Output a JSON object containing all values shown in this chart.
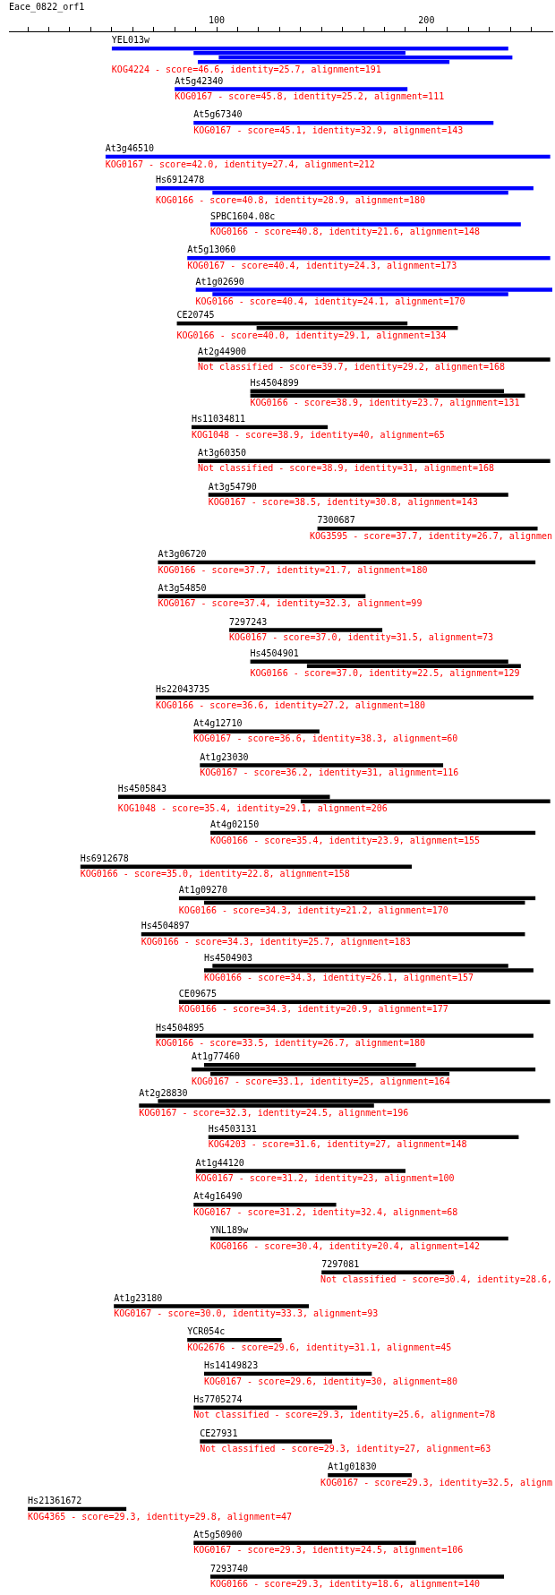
{
  "chart_data": {
    "type": "bar",
    "orientation": "horizontal",
    "xlabel": "Eace_0822_orf1",
    "categories": [
      "YEL013w",
      "At5g42340",
      "At5g67340",
      "At3g46510",
      "Hs6912478",
      "SPBC1604.08c",
      "At5g13060",
      "At1g02690",
      "CE20745",
      "At2g44900",
      "Hs4504899",
      "Hs11034811",
      "At3g60350",
      "At3g54790",
      "7300687",
      "At3g06720",
      "At3g54850",
      "7297243",
      "Hs4504901",
      "Hs22043735",
      "At4g12710",
      "At1g23030",
      "Hs4505843",
      "At4g02150",
      "Hs6912678",
      "At1g09270",
      "Hs4504897",
      "Hs4504903",
      "CE09675",
      "Hs4504895",
      "At1g77460",
      "At2g28830",
      "Hs4503131",
      "At1g44120",
      "At4g16490",
      "YNL189w",
      "7297081",
      "At1g23180",
      "YCR054c",
      "Hs14149823",
      "Hs7705274",
      "CE27931",
      "At1g01830",
      "Hs21361672",
      "At5g50900",
      "7293740"
    ],
    "series": [
      {
        "values": [
          189,
          111,
          143,
          212,
          180,
          148,
          173,
          170,
          110,
          168,
          121,
          65,
          168,
          143,
          105,
          180,
          99,
          73,
          123,
          180,
          60,
          116,
          101,
          155,
          158,
          170,
          183,
          141,
          177,
          180,
          101,
          187,
          148,
          100,
          68,
          142,
          63,
          93,
          45,
          80,
          78,
          63,
          40,
          47,
          106,
          140
        ],
        "base": [
          50,
          80,
          89,
          47,
          71,
          97,
          86,
          90,
          81,
          91,
          116,
          88,
          91,
          96,
          148,
          72,
          72,
          106,
          116,
          71,
          89,
          92,
          53,
          97,
          35,
          82,
          64,
          98,
          82,
          71,
          94,
          72,
          96,
          90,
          89,
          97,
          150,
          51,
          86,
          94,
          89,
          92,
          153,
          10,
          89,
          97
        ],
        "colors": [
          "#0000ff",
          "#0000ff",
          "#0000ff",
          "#0000ff",
          "#0000ff",
          "#0000ff",
          "#0000ff",
          "#0000ff",
          "#000000",
          "#000000",
          "#000000",
          "#000000",
          "#000000",
          "#000000",
          "#000000",
          "#000000",
          "#000000",
          "#000000",
          "#000000",
          "#000000",
          "#000000",
          "#000000",
          "#000000",
          "#000000",
          "#000000",
          "#000000",
          "#000000",
          "#000000",
          "#000000",
          "#000000",
          "#000000",
          "#000000",
          "#000000",
          "#000000",
          "#000000",
          "#000000",
          "#000000",
          "#000000",
          "#000000",
          "#000000",
          "#000000",
          "#000000",
          "#000000",
          "#000000",
          "#000000",
          "#000000"
        ]
      },
      {
        "values": [
          101,
          null,
          null,
          null,
          141,
          null,
          null,
          141,
          96,
          null,
          131,
          null,
          null,
          null,
          null,
          null,
          null,
          null,
          102,
          null,
          null,
          null,
          119,
          null,
          null,
          153,
          null,
          157,
          null,
          null,
          164,
          112,
          null,
          null,
          null,
          null,
          null,
          null,
          null,
          null,
          null,
          null,
          null,
          null,
          null,
          null
        ],
        "base": [
          89,
          null,
          null,
          null,
          98,
          null,
          null,
          98,
          119,
          null,
          116,
          null,
          null,
          null,
          null,
          null,
          null,
          null,
          143,
          null,
          null,
          null,
          140,
          null,
          null,
          94,
          null,
          94,
          null,
          null,
          88,
          63,
          null,
          null,
          null,
          null,
          null,
          null,
          null,
          null,
          null,
          null,
          null,
          null,
          null,
          null
        ],
        "colors": [
          "#0000ff",
          null,
          null,
          null,
          "#0000ff",
          null,
          null,
          "#0000ff",
          "#000000",
          null,
          "#000000",
          null,
          null,
          null,
          null,
          null,
          null,
          null,
          "#000000",
          null,
          null,
          null,
          "#000000",
          null,
          null,
          "#000000",
          null,
          "#000000",
          null,
          null,
          "#000000",
          "#000000",
          null,
          null,
          null,
          null,
          null,
          null,
          null,
          null,
          null,
          null,
          null,
          null,
          null,
          null
        ]
      },
      {
        "values": [
          140,
          null,
          null,
          null,
          null,
          null,
          null,
          null,
          null,
          null,
          null,
          null,
          null,
          null,
          null,
          null,
          null,
          null,
          null,
          null,
          null,
          null,
          null,
          null,
          null,
          null,
          null,
          null,
          null,
          null,
          114,
          null,
          null,
          null,
          null,
          null,
          null,
          null,
          null,
          null,
          null,
          null,
          null,
          null,
          null,
          null
        ],
        "base": [
          101,
          null,
          null,
          null,
          null,
          null,
          null,
          null,
          null,
          null,
          null,
          null,
          null,
          null,
          null,
          null,
          null,
          null,
          null,
          null,
          null,
          null,
          null,
          null,
          null,
          null,
          null,
          null,
          null,
          null,
          97,
          null,
          null,
          null,
          null,
          null,
          null,
          null,
          null,
          null,
          null,
          null,
          null,
          null,
          null,
          null
        ],
        "colors": [
          "#0000ff",
          null,
          null,
          null,
          null,
          null,
          null,
          null,
          null,
          null,
          null,
          null,
          null,
          null,
          null,
          null,
          null,
          null,
          null,
          null,
          null,
          null,
          null,
          null,
          null,
          null,
          null,
          null,
          null,
          null,
          "#000000",
          null,
          null,
          null,
          null,
          null,
          null,
          null,
          null,
          null,
          null,
          null,
          null,
          null,
          null,
          null
        ]
      },
      {
        "values": [
          120,
          null,
          null,
          null,
          null,
          null,
          null,
          null,
          null,
          null,
          null,
          null,
          null,
          null,
          null,
          null,
          null,
          null,
          null,
          null,
          null,
          null,
          null,
          null,
          null,
          null,
          null,
          null,
          null,
          null,
          null,
          null,
          null,
          null,
          null,
          null,
          null,
          null,
          null,
          null,
          null,
          null,
          null,
          null,
          null,
          null
        ],
        "base": [
          91,
          null,
          null,
          null,
          null,
          null,
          null,
          null,
          null,
          null,
          null,
          null,
          null,
          null,
          null,
          null,
          null,
          null,
          null,
          null,
          null,
          null,
          null,
          null,
          null,
          null,
          null,
          null,
          null,
          null,
          null,
          null,
          null,
          null,
          null,
          null,
          null,
          null,
          null,
          null,
          null,
          null,
          null,
          null,
          null,
          null
        ],
        "colors": [
          "#0000ff",
          null,
          null,
          null,
          null,
          null,
          null,
          null,
          null,
          null,
          null,
          null,
          null,
          null,
          null,
          null,
          null,
          null,
          null,
          null,
          null,
          null,
          null,
          null,
          null,
          null,
          null,
          null,
          null,
          null,
          null,
          null,
          null,
          null,
          null,
          null,
          null,
          null,
          null,
          null,
          null,
          null,
          null,
          null,
          null,
          null
        ]
      }
    ],
    "xlim": [
      1,
      260
    ],
    "xticks": [
      {
        "value": 10,
        "label": null
      },
      {
        "value": 20,
        "label": null
      },
      {
        "value": 30,
        "label": null
      },
      {
        "value": 40,
        "label": null
      },
      {
        "value": 50,
        "label": null
      },
      {
        "value": 60,
        "label": null
      },
      {
        "value": 70,
        "label": null
      },
      {
        "value": 80,
        "label": null
      },
      {
        "value": 90,
        "label": null
      },
      100,
      {
        "value": 110,
        "label": null
      },
      {
        "value": 120,
        "label": null
      },
      {
        "value": 130,
        "label": null
      },
      {
        "value": 140,
        "label": null
      },
      {
        "value": 150,
        "label": null
      },
      {
        "value": 160,
        "label": null
      },
      {
        "value": 170,
        "label": null
      },
      {
        "value": 180,
        "label": null
      },
      {
        "value": 190,
        "label": null
      },
      200,
      {
        "value": 210,
        "label": null
      },
      {
        "value": 220,
        "label": null
      },
      {
        "value": 230,
        "label": null
      },
      {
        "value": 240,
        "label": null
      },
      {
        "value": 250,
        "label": null
      }
    ],
    "annotations": [
      "KOG4224 - score=46.6, identity=25.7, alignment=191",
      "KOG0167 - score=45.8, identity=25.2, alignment=111",
      "KOG0167 - score=45.1, identity=32.9, alignment=143",
      "KOG0167 - score=42.0, identity=27.4, alignment=212",
      "KOG0166 - score=40.8, identity=28.9, alignment=180",
      "KOG0166 - score=40.8, identity=21.6, alignment=148",
      "KOG0167 - score=40.4, identity=24.3, alignment=173",
      "KOG0166 - score=40.4, identity=24.1, alignment=170",
      "KOG0166 - score=40.0, identity=29.1, alignment=134",
      "Not classified - score=39.7, identity=29.2, alignment=168",
      "KOG0166 - score=38.9, identity=23.7, alignment=131",
      "KOG1048 - score=38.9, identity=40, alignment=65",
      "Not classified - score=38.9, identity=31, alignment=168",
      "KOG0167 - score=38.5, identity=30.8, alignment=143",
      "KOG3595 - score=37.7, identity=26.7, alignmen",
      "KOG0166 - score=37.7, identity=21.7, alignment=180",
      "KOG0167 - score=37.4, identity=32.3, alignment=99",
      "KOG0167 - score=37.0, identity=31.5, alignment=73",
      "KOG0166 - score=37.0, identity=22.5, alignment=129",
      "KOG0166 - score=36.6, identity=27.2, alignment=180",
      "KOG0167 - score=36.6, identity=38.3, alignment=60",
      "KOG0167 - score=36.2, identity=31, alignment=116",
      "KOG1048 - score=35.4, identity=29.1, alignment=206",
      "KOG0166 - score=35.4, identity=23.9, alignment=155",
      "KOG0166 - score=35.0, identity=22.8, alignment=158",
      "KOG0166 - score=34.3, identity=21.2, alignment=170",
      "KOG0166 - score=34.3, identity=25.7, alignment=183",
      "KOG0166 - score=34.3, identity=26.1, alignment=157",
      "KOG0166 - score=34.3, identity=20.9, alignment=177",
      "KOG0166 - score=33.5, identity=26.7, alignment=180",
      "KOG0167 - score=33.1, identity=25, alignment=164",
      "KOG0167 - score=32.3, identity=24.5, alignment=196",
      "KOG4203 - score=31.6, identity=27, alignment=148",
      "KOG0167 - score=31.2, identity=23, alignment=100",
      "KOG0167 - score=31.2, identity=32.4, alignment=68",
      "KOG0166 - score=30.4, identity=20.4, alignment=142",
      "Not classified - score=30.4, identity=28.6,",
      "KOG0167 - score=30.0, identity=33.3, alignment=93",
      "KOG2676 - score=29.6, identity=31.1, alignment=45",
      "KOG0167 - score=29.6, identity=30, alignment=80",
      "Not classified - score=29.3, identity=25.6, alignment=78",
      "Not classified - score=29.3, identity=27, alignment=63",
      "KOG0167 - score=29.3, identity=32.5, alignm",
      "KOG4365 - score=29.3, identity=29.8, alignment=47",
      "KOG0167 - score=29.3, identity=24.5, alignment=106",
      "KOG0166 - score=29.3, identity=18.6, alignment=140"
    ]
  }
}
